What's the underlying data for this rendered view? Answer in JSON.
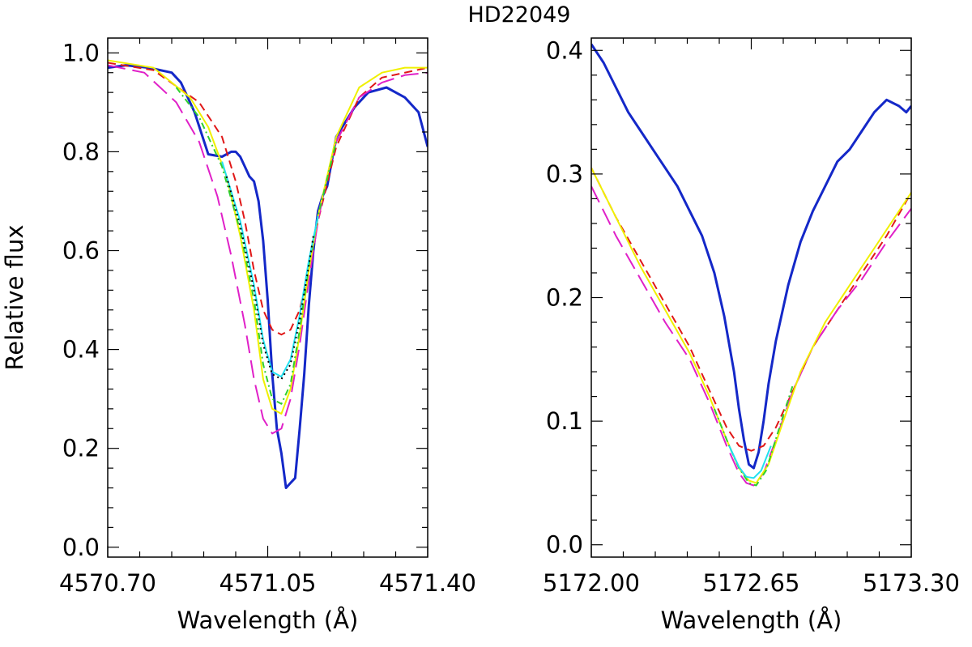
{
  "title": "HD22049",
  "colors": {
    "observed": "#1428c8",
    "red_dashed": "#e01818",
    "magenta_longdash": "#e020c8",
    "yellow_solid": "#f0f000",
    "green_dashdot": "#30d030",
    "cyan_solid": "#20e0f0",
    "black_dotted": "#000000"
  },
  "chart_data": [
    {
      "type": "line",
      "title": "",
      "xlabel": "Wavelength (Å)",
      "ylabel": "Relative flux",
      "xlim": [
        4570.7,
        4571.4
      ],
      "ylim": [
        -0.02,
        1.03
      ],
      "xticks": [
        4570.7,
        4571.05,
        4571.4
      ],
      "xtick_labels": [
        "4570.70",
        "4571.05",
        "4571.40"
      ],
      "yticks": [
        0.0,
        0.2,
        0.4,
        0.6,
        0.8,
        1.0
      ],
      "ytick_labels": [
        "0.0",
        "0.2",
        "0.4",
        "0.6",
        "0.8",
        "1.0"
      ],
      "grid": false,
      "series": [
        {
          "style": "solid-thick",
          "color_key": "observed",
          "x": [
            4570.7,
            4570.74,
            4570.79,
            4570.84,
            4570.86,
            4570.88,
            4570.89,
            4570.92,
            4570.95,
            4570.97,
            4570.98,
            4570.99,
            4571.0,
            4571.01,
            4571.02,
            4571.03,
            4571.04,
            4571.05,
            4571.06,
            4571.07,
            4571.08,
            4571.09,
            4571.1,
            4571.11,
            4571.12,
            4571.13,
            4571.14,
            4571.15,
            4571.16,
            4571.17,
            4571.18,
            4571.2,
            4571.24,
            4571.27,
            4571.31,
            4571.35,
            4571.38,
            4571.4
          ],
          "y": [
            0.97,
            0.975,
            0.97,
            0.96,
            0.94,
            0.9,
            0.88,
            0.795,
            0.79,
            0.8,
            0.8,
            0.79,
            0.77,
            0.75,
            0.74,
            0.7,
            0.62,
            0.5,
            0.35,
            0.24,
            0.19,
            0.12,
            0.13,
            0.14,
            0.24,
            0.35,
            0.49,
            0.6,
            0.68,
            0.71,
            0.73,
            0.83,
            0.89,
            0.92,
            0.93,
            0.91,
            0.88,
            0.81
          ]
        },
        {
          "style": "dashed",
          "color_key": "red_dashed",
          "x": [
            4570.7,
            4570.8,
            4570.9,
            4570.95,
            4570.98,
            4571.0,
            4571.02,
            4571.04,
            4571.06,
            4571.08,
            4571.1,
            4571.12,
            4571.14,
            4571.16,
            4571.2,
            4571.25,
            4571.3,
            4571.4
          ],
          "y": [
            0.98,
            0.965,
            0.9,
            0.83,
            0.74,
            0.66,
            0.56,
            0.48,
            0.44,
            0.43,
            0.44,
            0.48,
            0.56,
            0.66,
            0.81,
            0.91,
            0.95,
            0.97
          ]
        },
        {
          "style": "long-dashed",
          "color_key": "magenta_longdash",
          "x": [
            4570.7,
            4570.78,
            4570.85,
            4570.9,
            4570.94,
            4570.97,
            4571.0,
            4571.02,
            4571.04,
            4571.06,
            4571.08,
            4571.1,
            4571.12,
            4571.14,
            4571.16,
            4571.18,
            4571.2,
            4571.25,
            4571.3,
            4571.35,
            4571.4
          ],
          "y": [
            0.975,
            0.96,
            0.9,
            0.82,
            0.71,
            0.59,
            0.45,
            0.34,
            0.26,
            0.23,
            0.24,
            0.3,
            0.41,
            0.54,
            0.66,
            0.75,
            0.82,
            0.91,
            0.94,
            0.955,
            0.96
          ]
        },
        {
          "style": "solid-thin",
          "color_key": "yellow_solid",
          "x": [
            4570.7,
            4570.8,
            4570.88,
            4570.92,
            4570.96,
            4570.99,
            4571.02,
            4571.04,
            4571.06,
            4571.08,
            4571.1,
            4571.12,
            4571.14,
            4571.16,
            4571.2,
            4571.25,
            4571.3,
            4571.35,
            4571.4
          ],
          "y": [
            0.985,
            0.97,
            0.91,
            0.85,
            0.75,
            0.63,
            0.48,
            0.34,
            0.28,
            0.27,
            0.32,
            0.43,
            0.56,
            0.67,
            0.83,
            0.93,
            0.96,
            0.97,
            0.97
          ]
        },
        {
          "style": "dash-dot",
          "color_key": "green_dashdot",
          "x": [
            4570.85,
            4570.9,
            4570.95,
            4570.99,
            4571.02,
            4571.04,
            4571.06,
            4571.08,
            4571.1,
            4571.12,
            4571.14,
            4571.16,
            4571.2
          ],
          "y": [
            0.93,
            0.87,
            0.77,
            0.64,
            0.5,
            0.37,
            0.3,
            0.29,
            0.33,
            0.44,
            0.57,
            0.67,
            0.82
          ]
        },
        {
          "style": "solid-thin",
          "color_key": "cyan_solid",
          "x": [
            4570.95,
            4570.99,
            4571.02,
            4571.04,
            4571.06,
            4571.08,
            4571.1,
            4571.12,
            4571.14,
            4571.16
          ],
          "y": [
            0.78,
            0.66,
            0.53,
            0.42,
            0.355,
            0.345,
            0.38,
            0.47,
            0.58,
            0.67
          ]
        },
        {
          "style": "dotted",
          "color_key": "black_dotted",
          "x": [
            4570.96,
            4570.99,
            4571.02,
            4571.04,
            4571.06,
            4571.08,
            4571.1,
            4571.12,
            4571.14,
            4571.15
          ],
          "y": [
            0.75,
            0.65,
            0.52,
            0.41,
            0.35,
            0.34,
            0.37,
            0.46,
            0.57,
            0.63
          ]
        }
      ]
    },
    {
      "type": "line",
      "title": "",
      "xlabel": "Wavelength (Å)",
      "ylabel": "",
      "xlim": [
        5172.0,
        5173.3
      ],
      "ylim": [
        -0.01,
        0.41
      ],
      "xticks": [
        5172.0,
        5172.65,
        5173.3
      ],
      "xtick_labels": [
        "5172.00",
        "5172.65",
        "5173.30"
      ],
      "yticks": [
        0.0,
        0.1,
        0.2,
        0.3,
        0.4
      ],
      "ytick_labels": [
        "0.0",
        "0.1",
        "0.2",
        "0.3",
        "0.4"
      ],
      "grid": false,
      "series": [
        {
          "style": "solid-thick",
          "color_key": "observed",
          "x": [
            5172.0,
            5172.05,
            5172.1,
            5172.15,
            5172.2,
            5172.25,
            5172.3,
            5172.35,
            5172.4,
            5172.45,
            5172.5,
            5172.54,
            5172.58,
            5172.6,
            5172.62,
            5172.64,
            5172.66,
            5172.68,
            5172.7,
            5172.72,
            5172.75,
            5172.8,
            5172.85,
            5172.9,
            5172.95,
            5173.0,
            5173.05,
            5173.1,
            5173.15,
            5173.2,
            5173.25,
            5173.28,
            5173.3
          ],
          "y": [
            0.405,
            0.39,
            0.37,
            0.35,
            0.335,
            0.32,
            0.305,
            0.29,
            0.27,
            0.25,
            0.22,
            0.185,
            0.14,
            0.11,
            0.085,
            0.065,
            0.062,
            0.075,
            0.1,
            0.13,
            0.165,
            0.21,
            0.245,
            0.27,
            0.29,
            0.31,
            0.32,
            0.335,
            0.35,
            0.36,
            0.355,
            0.35,
            0.355
          ]
        },
        {
          "style": "dashed",
          "color_key": "red_dashed",
          "x": [
            5172.0,
            5172.1,
            5172.2,
            5172.3,
            5172.4,
            5172.48,
            5172.55,
            5172.6,
            5172.65,
            5172.7,
            5172.75,
            5172.82,
            5172.9,
            5173.0,
            5173.1,
            5173.2,
            5173.3
          ],
          "y": [
            0.305,
            0.265,
            0.23,
            0.195,
            0.16,
            0.125,
            0.095,
            0.08,
            0.076,
            0.08,
            0.095,
            0.125,
            0.16,
            0.19,
            0.22,
            0.25,
            0.285
          ]
        },
        {
          "style": "long-dashed",
          "color_key": "magenta_longdash",
          "x": [
            5172.0,
            5172.1,
            5172.2,
            5172.3,
            5172.4,
            5172.48,
            5172.55,
            5172.6,
            5172.63,
            5172.66,
            5172.7,
            5172.75,
            5172.82,
            5172.9,
            5173.0,
            5173.1,
            5173.2,
            5173.3
          ],
          "y": [
            0.29,
            0.25,
            0.215,
            0.18,
            0.15,
            0.115,
            0.08,
            0.058,
            0.05,
            0.048,
            0.058,
            0.085,
            0.125,
            0.16,
            0.19,
            0.215,
            0.245,
            0.272
          ]
        },
        {
          "style": "solid-thin",
          "color_key": "yellow_solid",
          "x": [
            5172.0,
            5172.1,
            5172.2,
            5172.3,
            5172.4,
            5172.48,
            5172.55,
            5172.6,
            5172.64,
            5172.67,
            5172.72,
            5172.78,
            5172.85,
            5172.95,
            5173.05,
            5173.15,
            5173.3
          ],
          "y": [
            0.305,
            0.265,
            0.225,
            0.19,
            0.155,
            0.12,
            0.085,
            0.062,
            0.052,
            0.05,
            0.065,
            0.1,
            0.14,
            0.18,
            0.21,
            0.24,
            0.285
          ]
        },
        {
          "style": "dash-dot",
          "color_key": "green_dashdot",
          "x": [
            5172.5,
            5172.56,
            5172.6,
            5172.64,
            5172.67,
            5172.71,
            5172.76,
            5172.82
          ],
          "y": [
            0.11,
            0.08,
            0.062,
            0.05,
            0.048,
            0.06,
            0.092,
            0.13
          ]
        },
        {
          "style": "solid-thin",
          "color_key": "cyan_solid",
          "x": [
            5172.56,
            5172.6,
            5172.63,
            5172.66,
            5172.69,
            5172.73
          ],
          "y": [
            0.08,
            0.063,
            0.055,
            0.054,
            0.06,
            0.08
          ]
        }
      ]
    }
  ]
}
